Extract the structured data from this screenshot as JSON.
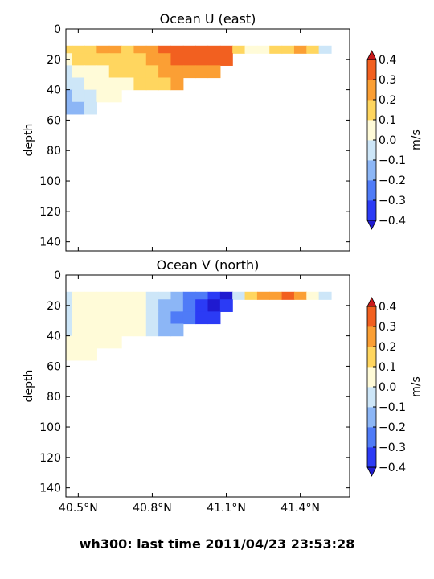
{
  "suptitle": "wh300: last time 2011/04/23 23:53:28",
  "chart_data": [
    {
      "type": "heatmap",
      "plot_kind": "filled-contour",
      "title": "Ocean U (east)",
      "xlabel": "",
      "ylabel": "depth",
      "xlim": [
        40.45,
        41.6
      ],
      "ylim": [
        146,
        0
      ],
      "y_inverted": true,
      "xticks": [
        40.5,
        40.8,
        41.1,
        41.4
      ],
      "xtick_labels": [],
      "yticks": [
        0,
        20,
        40,
        60,
        80,
        100,
        120,
        140
      ],
      "colorbar": {
        "label": "m/s",
        "ticks": [
          "0.4",
          "0.3",
          "0.2",
          "0.1",
          "0.0",
          "−0.1",
          "−0.2",
          "−0.3",
          "−0.4"
        ],
        "levels": [
          -0.4,
          -0.3,
          -0.2,
          -0.1,
          0.0,
          0.1,
          0.2,
          0.3,
          0.4
        ],
        "colors": [
          "#2b3bf5",
          "#4f7bf7",
          "#8cb6f6",
          "#cde6f8",
          "#fffbd8",
          "#ffd65f",
          "#fb9f34",
          "#f26020"
        ],
        "extend": "both",
        "extend_low_color": "#1f1ad0",
        "extend_high_color": "#c8191a"
      },
      "x": [
        40.45,
        40.5,
        40.55,
        40.6,
        40.65,
        40.7,
        40.75,
        40.8,
        40.85,
        40.9,
        40.95,
        41.0,
        41.05,
        41.1,
        41.15,
        41.2,
        41.25,
        41.3,
        41.35,
        41.4,
        41.45,
        41.5,
        41.55
      ],
      "depth": [
        12,
        20,
        28,
        36,
        44,
        52
      ],
      "values": [
        [
          0.12,
          0.15,
          0.18,
          0.2,
          0.2,
          0.18,
          0.2,
          0.24,
          0.3,
          0.33,
          0.34,
          0.35,
          0.36,
          0.34,
          0.18,
          0.02,
          0.05,
          0.12,
          0.18,
          0.22,
          0.1,
          -0.05,
          null
        ],
        [
          0.08,
          0.12,
          0.16,
          0.18,
          0.16,
          0.16,
          0.19,
          0.22,
          0.26,
          0.31,
          0.33,
          0.34,
          0.36,
          0.32,
          null,
          null,
          null,
          null,
          null,
          null,
          null,
          null,
          null
        ],
        [
          -0.05,
          0.0,
          0.08,
          0.09,
          0.1,
          0.11,
          0.13,
          0.18,
          0.22,
          0.24,
          0.27,
          0.28,
          0.28,
          null,
          null,
          null,
          null,
          null,
          null,
          null,
          null,
          null,
          null
        ],
        [
          -0.08,
          -0.03,
          0.05,
          0.06,
          0.08,
          0.09,
          0.1,
          0.12,
          0.15,
          0.2,
          null,
          null,
          null,
          null,
          null,
          null,
          null,
          null,
          null,
          null,
          null,
          null,
          null
        ],
        [
          -0.12,
          -0.1,
          -0.05,
          0.02,
          0.05,
          null,
          null,
          null,
          null,
          null,
          null,
          null,
          null,
          null,
          null,
          null,
          null,
          null,
          null,
          null,
          null,
          null,
          null
        ],
        [
          -0.14,
          -0.12,
          -0.08,
          null,
          null,
          null,
          null,
          null,
          null,
          null,
          null,
          null,
          null,
          null,
          null,
          null,
          null,
          null,
          null,
          null,
          null,
          null,
          null
        ]
      ]
    },
    {
      "type": "heatmap",
      "plot_kind": "filled-contour",
      "title": "Ocean V (north)",
      "xlabel": "",
      "ylabel": "depth",
      "xlim": [
        40.45,
        41.6
      ],
      "ylim": [
        146,
        0
      ],
      "y_inverted": true,
      "xticks": [
        40.5,
        40.8,
        41.1,
        41.4
      ],
      "xtick_labels": [
        "40.5°N",
        "40.8°N",
        "41.1°N",
        "41.4°N"
      ],
      "yticks": [
        0,
        20,
        40,
        60,
        80,
        100,
        120,
        140
      ],
      "colorbar": {
        "label": "m/s",
        "ticks": [
          "0.4",
          "0.3",
          "0.2",
          "0.1",
          "0.0",
          "−0.1",
          "−0.2",
          "−0.3",
          "−0.4"
        ],
        "levels": [
          -0.4,
          -0.3,
          -0.2,
          -0.1,
          0.0,
          0.1,
          0.2,
          0.3,
          0.4
        ],
        "colors": [
          "#2b3bf5",
          "#4f7bf7",
          "#8cb6f6",
          "#cde6f8",
          "#fffbd8",
          "#ffd65f",
          "#fb9f34",
          "#f26020"
        ],
        "extend": "both",
        "extend_low_color": "#1f1ad0",
        "extend_high_color": "#c8191a"
      },
      "x": [
        40.45,
        40.5,
        40.55,
        40.6,
        40.65,
        40.7,
        40.75,
        40.8,
        40.85,
        40.9,
        40.95,
        41.0,
        41.05,
        41.1,
        41.15,
        41.2,
        41.25,
        41.3,
        41.35,
        41.4,
        41.45,
        41.5,
        41.55
      ],
      "depth": [
        12,
        20,
        28,
        36,
        44,
        52
      ],
      "values": [
        [
          -0.05,
          0.02,
          0.04,
          0.05,
          0.05,
          0.04,
          0.03,
          -0.04,
          -0.1,
          -0.16,
          -0.22,
          -0.28,
          -0.36,
          -0.42,
          -0.1,
          0.1,
          0.22,
          0.28,
          0.36,
          0.25,
          0.05,
          -0.02,
          null
        ],
        [
          -0.06,
          0.01,
          0.03,
          0.04,
          0.04,
          0.03,
          0.02,
          -0.05,
          -0.12,
          -0.18,
          -0.26,
          -0.32,
          -0.4,
          -0.38,
          null,
          null,
          null,
          null,
          null,
          null,
          null,
          null,
          null
        ],
        [
          -0.08,
          0.0,
          0.02,
          0.03,
          0.03,
          0.02,
          0.01,
          -0.06,
          -0.14,
          -0.22,
          -0.3,
          -0.34,
          -0.38,
          null,
          null,
          null,
          null,
          null,
          null,
          null,
          null,
          null,
          null
        ],
        [
          -0.06,
          0.01,
          0.02,
          0.03,
          0.03,
          0.02,
          0.0,
          -0.05,
          -0.12,
          -0.2,
          null,
          null,
          null,
          null,
          null,
          null,
          null,
          null,
          null,
          null,
          null,
          null,
          null
        ],
        [
          0.02,
          0.03,
          0.03,
          0.03,
          0.03,
          null,
          null,
          null,
          null,
          null,
          null,
          null,
          null,
          null,
          null,
          null,
          null,
          null,
          null,
          null,
          null,
          null,
          null
        ],
        [
          0.03,
          0.03,
          0.03,
          null,
          null,
          null,
          null,
          null,
          null,
          null,
          null,
          null,
          null,
          null,
          null,
          null,
          null,
          null,
          null,
          null,
          null,
          null,
          null
        ]
      ]
    }
  ]
}
